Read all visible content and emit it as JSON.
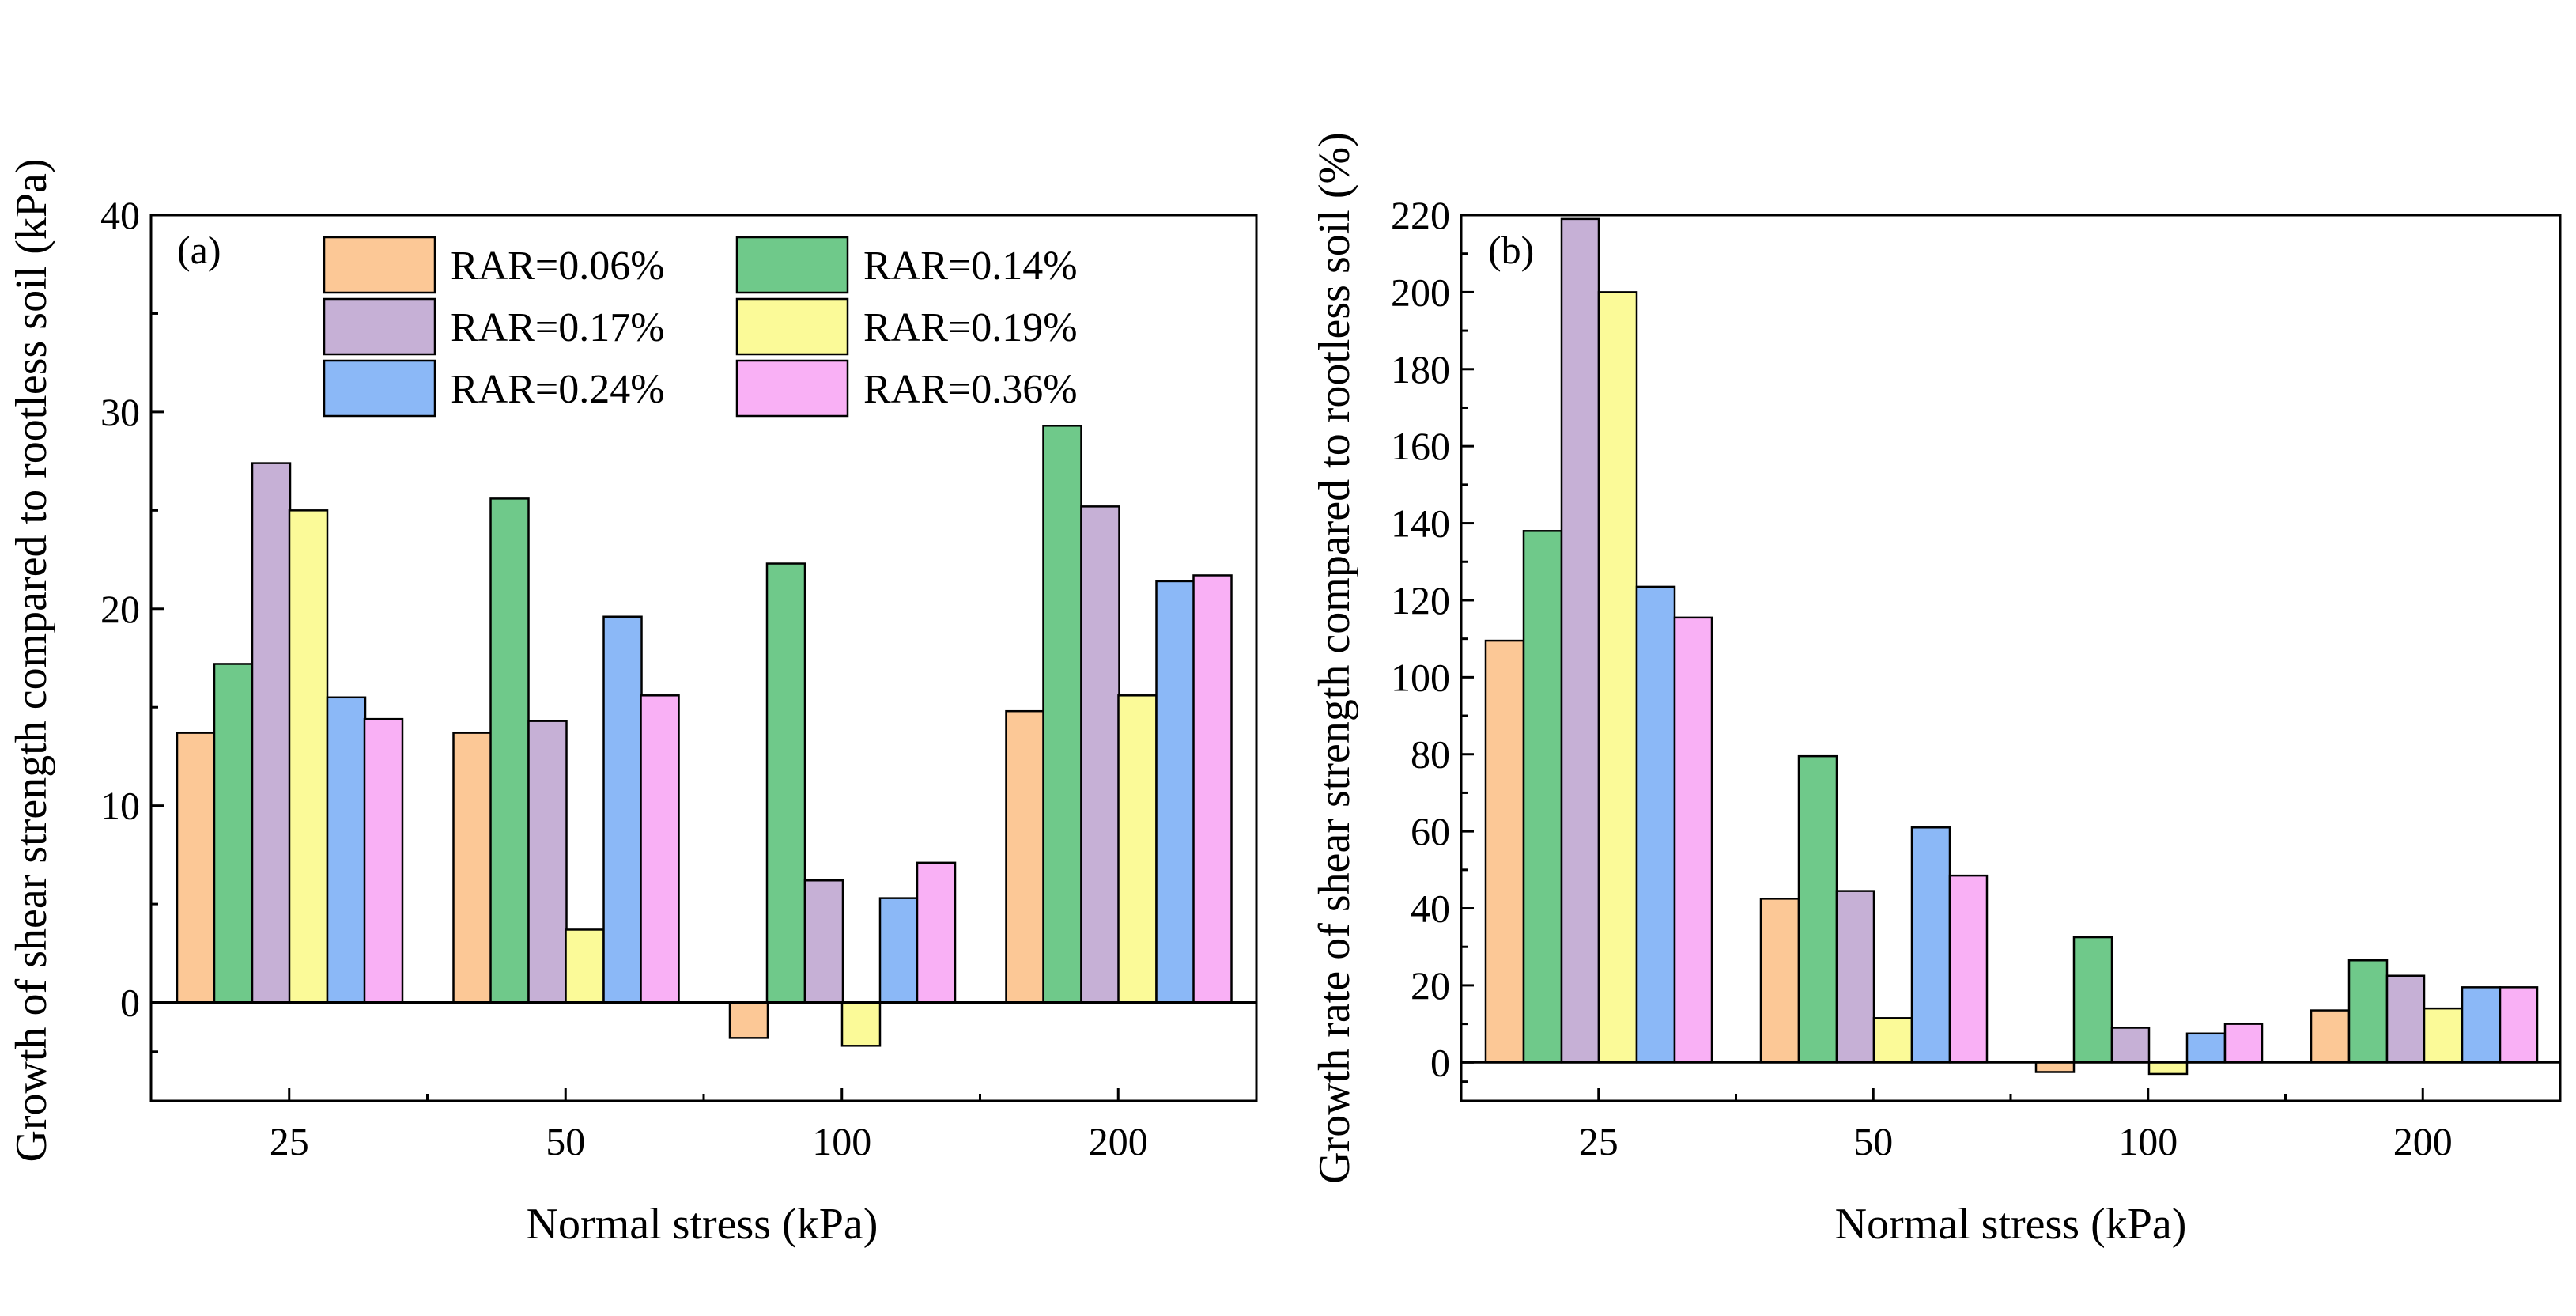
{
  "colors": {
    "RAR=0.06%": "#fcc896",
    "RAR=0.14%": "#6fc98a",
    "RAR=0.17%": "#c6b0d6",
    "RAR=0.19%": "#fbfa98",
    "RAR=0.24%": "#8bb8f7",
    "RAR=0.36%": "#f9b0f5"
  },
  "legend": {
    "items": [
      "RAR=0.06%",
      "RAR=0.14%",
      "RAR=0.17%",
      "RAR=0.19%",
      "RAR=0.24%",
      "RAR=0.36%"
    ]
  },
  "chart_data": [
    {
      "type": "bar",
      "panel_label": "(a)",
      "categories": [
        "25",
        "50",
        "100",
        "200"
      ],
      "xlabel": "Normal stress (kPa)",
      "ylabel": "Growth of shear strength compared to rootless soil (kPa)",
      "ylim": [
        -5,
        40
      ],
      "yticks": [
        0,
        10,
        20,
        30,
        40
      ],
      "yticklabels": [
        "0",
        "10",
        "20",
        "30",
        "40"
      ],
      "grid": false,
      "legend_position": "top-center",
      "series": [
        {
          "name": "RAR=0.06%",
          "values": [
            13.7,
            13.7,
            -1.8,
            14.8
          ]
        },
        {
          "name": "RAR=0.14%",
          "values": [
            17.2,
            25.6,
            22.3,
            29.3
          ]
        },
        {
          "name": "RAR=0.17%",
          "values": [
            27.4,
            14.3,
            6.2,
            25.2
          ]
        },
        {
          "name": "RAR=0.19%",
          "values": [
            25.0,
            3.7,
            -2.2,
            15.6
          ]
        },
        {
          "name": "RAR=0.24%",
          "values": [
            15.5,
            19.6,
            5.3,
            21.4
          ]
        },
        {
          "name": "RAR=0.36%",
          "values": [
            14.4,
            15.6,
            7.1,
            21.7
          ]
        }
      ]
    },
    {
      "type": "bar",
      "panel_label": "(b)",
      "categories": [
        "25",
        "50",
        "100",
        "200"
      ],
      "xlabel": "Normal stress (kPa)",
      "ylabel": "Growth rate of shear strength compared to rootless soil (%)",
      "ylim": [
        -10,
        220
      ],
      "yticks": [
        0,
        20,
        40,
        60,
        80,
        100,
        120,
        140,
        160,
        180,
        200,
        220
      ],
      "yticklabels": [
        "0",
        "20",
        "40",
        "60",
        "80",
        "100",
        "120",
        "140",
        "160",
        "180",
        "200",
        "220"
      ],
      "grid": false,
      "series": [
        {
          "name": "RAR=0.06%",
          "values": [
            109.5,
            42.5,
            -2.5,
            13.5
          ]
        },
        {
          "name": "RAR=0.14%",
          "values": [
            138,
            79.5,
            32.5,
            26.5
          ]
        },
        {
          "name": "RAR=0.17%",
          "values": [
            219,
            44.5,
            9,
            22.5
          ]
        },
        {
          "name": "RAR=0.19%",
          "values": [
            200,
            11.5,
            -3,
            14
          ]
        },
        {
          "name": "RAR=0.24%",
          "values": [
            123.5,
            61,
            7.5,
            19.5
          ]
        },
        {
          "name": "RAR=0.36%",
          "values": [
            115.5,
            48.5,
            10,
            19.5
          ]
        }
      ]
    }
  ]
}
